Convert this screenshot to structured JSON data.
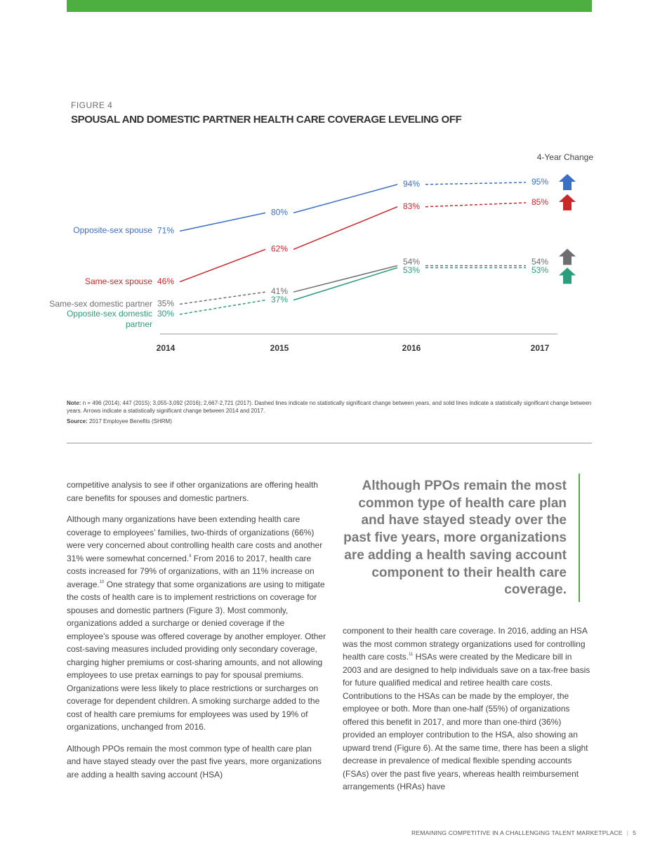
{
  "chart_data": {
    "type": "line",
    "figure_label": "FIGURE 4",
    "title": "SPOUSAL AND DOMESTIC PARTNER HEALTH CARE COVERAGE LEVELING OFF",
    "annotation": "4-Year Change",
    "categories": [
      "2014",
      "2015",
      "2016",
      "2017"
    ],
    "series": [
      {
        "name": "Opposite-sex spouse",
        "color": "#3b6fc4",
        "values": [
          71,
          80,
          94,
          95
        ],
        "value_labels": [
          "71%",
          "80%",
          "94%",
          "95%"
        ],
        "line_styles": [
          "solid",
          "solid",
          "dashed"
        ],
        "arrow": "up"
      },
      {
        "name": "Same-sex spouse",
        "color": "#c9282b",
        "values": [
          46,
          62,
          83,
          85
        ],
        "value_labels": [
          "46%",
          "62%",
          "83%",
          "85%"
        ],
        "line_styles": [
          "solid",
          "solid",
          "dashed"
        ],
        "arrow": "up"
      },
      {
        "name": "Same-sex domestic partner",
        "color": "#6d6e71",
        "values": [
          35,
          41,
          54,
          54
        ],
        "value_labels": [
          "35%",
          "41%",
          "54%",
          "54%"
        ],
        "line_styles": [
          "dashed",
          "solid",
          "dashed"
        ],
        "arrow": "up"
      },
      {
        "name": "Opposite-sex domestic partner",
        "color": "#2a9d7c",
        "values": [
          30,
          37,
          53,
          53
        ],
        "value_labels": [
          "30%",
          "37%",
          "53%",
          "53%"
        ],
        "line_styles": [
          "dashed",
          "solid",
          "dashed"
        ],
        "arrow": "up"
      }
    ]
  },
  "note": {
    "label": "Note:",
    "text": "n = 496 (2014); 447 (2015); 3,055-3,092 (2016); 2,667-2,721 (2017). Dashed lines indicate no statistically significant change between years, and solid lines indicate a statistically significant change between years. Arrows indicate a statistically significant change between 2014 and 2017."
  },
  "source": {
    "label": "Source:",
    "text": "2017 Employee Benefits (SHRM)"
  },
  "left_column": [
    [
      {
        "text": "competitive analysis to see if other organizations are offering health care benefits for spouses and domestic partners."
      }
    ],
    [
      {
        "text": "Although many organizations have been extending health care coverage to employees’ families, two-thirds of organizations (66%) were very concerned about controlling health care costs and another 31% were somewhat concerned."
      },
      {
        "sup": "9"
      },
      {
        "text": " From 2016 to 2017, health care costs increased for 79% of organizations, with an 11% increase on average."
      },
      {
        "sup": "10"
      },
      {
        "text": " One strategy that some organizations are using to mitigate the costs of health care is to implement restrictions on coverage for spouses and domestic partners (Figure 3). Most commonly, organizations added a surcharge or denied coverage if the employee’s spouse was offered coverage by another employer. Other cost-saving measures included providing only secondary coverage, charging higher premiums or cost-sharing amounts, and not allowing employees to use pretax earnings to pay for spousal premiums. Organizations were less likely to place restrictions or surcharges on coverage for dependent children. A smoking surcharge added to the cost of health care premiums for employees was used by 19% of organizations, unchanged from 2016."
      }
    ],
    [
      {
        "text": "Although PPOs remain the most common type of health care plan and have stayed steady over the past five years, more organizations are adding a health saving account (HSA)"
      }
    ]
  ],
  "pull_quote": "Although PPOs remain the most common type of health care plan and have stayed steady over the past five years, more organizations are adding a health saving account component to their health care coverage.",
  "right_column": [
    [
      {
        "text": "component to their health care coverage. In 2016, adding an HSA was the most common strategy organizations used for controlling health care costs."
      },
      {
        "sup": "11"
      },
      {
        "text": " HSAs were created by the Medicare bill in 2003 and are designed to help individuals save on a tax-free basis for future qualified medical and retiree health care costs. Contributions to the HSAs can be made by the employer, the employee or both. More than one-half (55%) of organizations offered this benefit in 2017, and more than one-third (36%) provided an employer contribution to the HSA, also showing an upward trend (Figure 6). At the same time, there has been a slight decrease in prevalence of medical flexible spending accounts (FSAs) over the past five years, whereas health reimbursement arrangements (HRAs) have"
      }
    ]
  ],
  "footer": {
    "title": "REMAINING COMPETITIVE IN A CHALLENGING TALENT MARKETPLACE",
    "page": "5"
  }
}
